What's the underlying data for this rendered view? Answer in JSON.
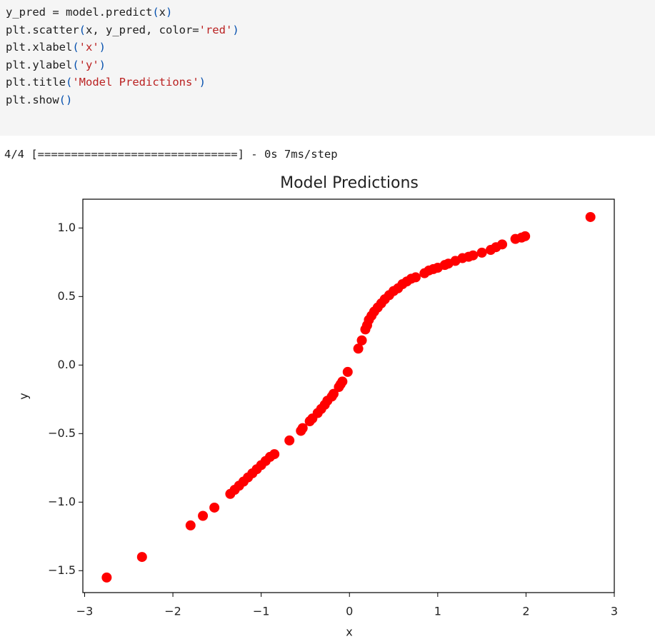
{
  "code": {
    "lines": [
      [
        "y_pred = model.predict",
        "(",
        "x",
        ")"
      ],
      [
        "plt.scatter",
        "(",
        "x, y_pred, color=",
        "'red'",
        ")"
      ],
      [
        "plt.xlabel",
        "(",
        "'x'",
        ")"
      ],
      [
        "plt.ylabel",
        "(",
        "'y'",
        ")"
      ],
      [
        "plt.title",
        "(",
        "'Model Predictions'",
        ")"
      ],
      [
        "plt.show",
        "()"
      ]
    ]
  },
  "output": {
    "text": "4/4 [==============================] - 0s 7ms/step"
  },
  "chart_data": {
    "type": "scatter",
    "title": "Model Predictions",
    "x_label": "x",
    "y_label": "y",
    "color": "#ff0000",
    "x": [
      -2.75,
      -2.35,
      -1.8,
      -1.66,
      -1.53,
      -1.35,
      -1.3,
      -1.25,
      -1.2,
      -1.15,
      -1.1,
      -1.05,
      -1.0,
      -0.95,
      -0.9,
      -0.85,
      -0.68,
      -0.55,
      -0.53,
      -0.45,
      -0.42,
      -0.36,
      -0.32,
      -0.28,
      -0.25,
      -0.2,
      -0.18,
      -0.12,
      -0.1,
      -0.08,
      -0.02,
      0.1,
      0.14,
      0.18,
      0.2,
      0.22,
      0.25,
      0.28,
      0.32,
      0.36,
      0.4,
      0.45,
      0.5,
      0.55,
      0.6,
      0.65,
      0.7,
      0.75,
      0.85,
      0.9,
      0.95,
      1.0,
      1.08,
      1.12,
      1.2,
      1.28,
      1.35,
      1.4,
      1.5,
      1.6,
      1.66,
      1.73,
      1.88,
      1.95,
      1.99,
      2.73
    ],
    "values": [
      -1.55,
      -1.4,
      -1.17,
      -1.1,
      -1.04,
      -0.94,
      -0.91,
      -0.88,
      -0.85,
      -0.82,
      -0.79,
      -0.76,
      -0.73,
      -0.7,
      -0.67,
      -0.65,
      -0.55,
      -0.48,
      -0.46,
      -0.41,
      -0.39,
      -0.35,
      -0.32,
      -0.29,
      -0.26,
      -0.23,
      -0.21,
      -0.16,
      -0.14,
      -0.12,
      -0.05,
      0.12,
      0.18,
      0.26,
      0.29,
      0.33,
      0.36,
      0.39,
      0.42,
      0.45,
      0.48,
      0.51,
      0.54,
      0.56,
      0.59,
      0.61,
      0.63,
      0.64,
      0.67,
      0.69,
      0.7,
      0.71,
      0.73,
      0.74,
      0.76,
      0.78,
      0.79,
      0.8,
      0.82,
      0.84,
      0.86,
      0.88,
      0.92,
      0.93,
      0.94,
      1.08
    ],
    "xlim": [
      -3.02,
      3.0
    ],
    "ylim": [
      -1.66,
      1.21
    ],
    "xticks": [
      {
        "value": -3,
        "label": "−3"
      },
      {
        "value": -2,
        "label": "−2"
      },
      {
        "value": -1,
        "label": "−1"
      },
      0,
      1,
      2,
      3
    ],
    "yticks": [
      {
        "value": -1.5,
        "label": "−1.5"
      },
      {
        "value": -1.0,
        "label": "−1.0"
      },
      {
        "value": -0.5,
        "label": "−0.5"
      },
      {
        "value": 0.0,
        "label": "0.0"
      },
      {
        "value": 0.5,
        "label": "0.5"
      },
      {
        "value": 1.0,
        "label": "1.0"
      }
    ],
    "grid": false
  }
}
